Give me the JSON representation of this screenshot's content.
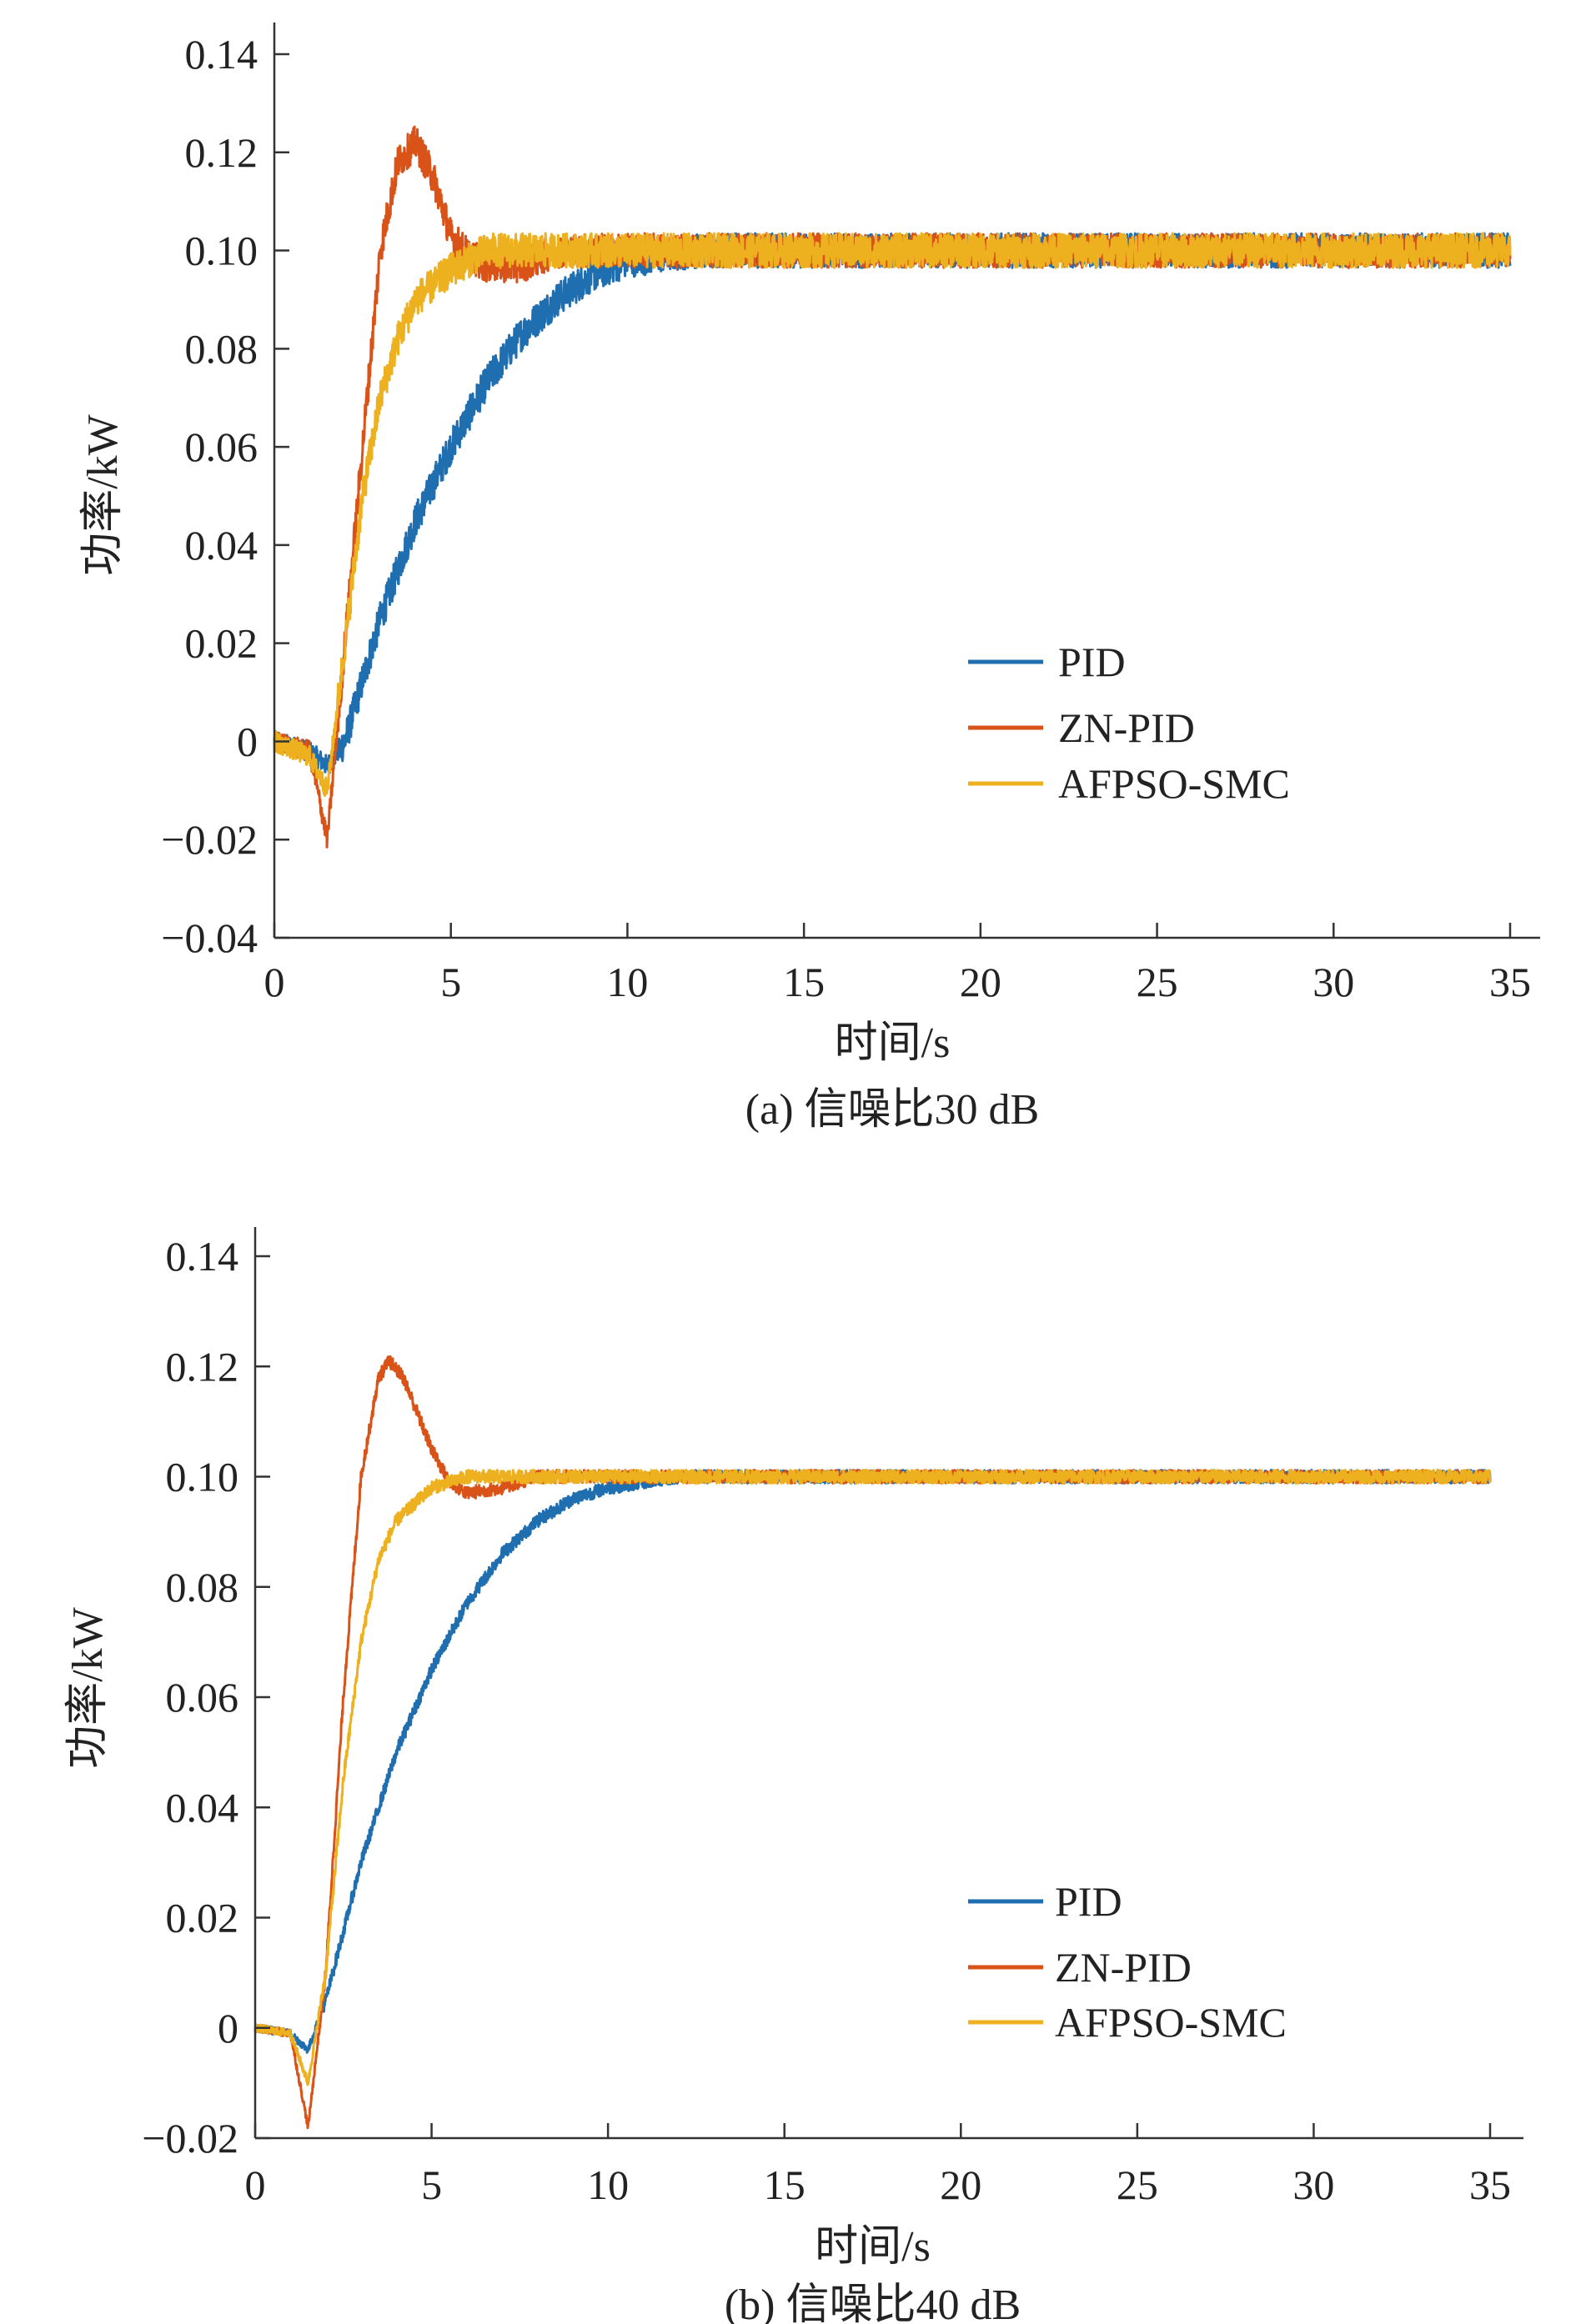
{
  "chart_data": [
    {
      "type": "line",
      "caption": "(a) 信噪比30 dB",
      "xlabel": "时间/s",
      "ylabel": "功率/kW",
      "xlim": [
        0,
        35
      ],
      "ylim": [
        -0.04,
        0.145
      ],
      "xticks": [
        0,
        5,
        10,
        15,
        20,
        25,
        30,
        35
      ],
      "xtick_labels": [
        "0",
        "5",
        "10",
        "15",
        "20",
        "25",
        "30",
        "35"
      ],
      "yticks": [
        -0.04,
        -0.02,
        0,
        0.02,
        0.04,
        0.06,
        0.08,
        0.1,
        0.12,
        0.14
      ],
      "ytick_labels": [
        "−0.04",
        "−0.02",
        "0",
        "0.02",
        "0.04",
        "0.06",
        "0.08",
        "0.10",
        "0.12",
        "0.14"
      ],
      "grid": false,
      "legend_position": "lower-right",
      "noise_amplitude": 0.0035,
      "series": [
        {
          "name": "PID",
          "color": "#1f6fb0",
          "x": [
            0,
            1,
            1.5,
            2,
            3,
            4,
            5,
            6,
            7,
            8,
            9,
            10,
            12,
            35
          ],
          "y": [
            0,
            -0.002,
            -0.005,
            0,
            0.025,
            0.045,
            0.06,
            0.073,
            0.083,
            0.09,
            0.095,
            0.098,
            0.1,
            0.1
          ]
        },
        {
          "name": "ZN-PID",
          "color": "#d95319",
          "x": [
            0,
            1,
            1.5,
            2,
            2.5,
            3,
            3.5,
            4,
            4.5,
            5,
            5.5,
            6,
            7,
            8,
            10,
            35
          ],
          "y": [
            0,
            -0.002,
            -0.02,
            0.02,
            0.06,
            0.1,
            0.118,
            0.122,
            0.115,
            0.103,
            0.099,
            0.097,
            0.097,
            0.1,
            0.1,
            0.1
          ]
        },
        {
          "name": "AFPSO-SMC",
          "color": "#edb120",
          "x": [
            0,
            1,
            1.5,
            2,
            2.5,
            3,
            3.5,
            4,
            5,
            6,
            35
          ],
          "y": [
            0,
            -0.003,
            -0.01,
            0.02,
            0.05,
            0.07,
            0.082,
            0.09,
            0.096,
            0.1,
            0.1
          ]
        }
      ]
    },
    {
      "type": "line",
      "caption": "(b) 信噪比40 dB",
      "xlabel": "时间/s",
      "ylabel": "功率/kW",
      "xlim": [
        0,
        35
      ],
      "ylim": [
        -0.02,
        0.145
      ],
      "xticks": [
        0,
        5,
        10,
        15,
        20,
        25,
        30,
        35
      ],
      "xtick_labels": [
        "0",
        "5",
        "10",
        "15",
        "20",
        "25",
        "30",
        "35"
      ],
      "yticks": [
        -0.02,
        0,
        0.02,
        0.04,
        0.06,
        0.08,
        0.1,
        0.12,
        0.14
      ],
      "ytick_labels": [
        "−0.02",
        "0",
        "0.02",
        "0.04",
        "0.06",
        "0.08",
        "0.10",
        "0.12",
        "0.14"
      ],
      "grid": false,
      "legend_position": "lower-right",
      "noise_amplitude": 0.0012,
      "series": [
        {
          "name": "PID",
          "color": "#1f6fb0",
          "x": [
            0,
            1,
            1.5,
            2,
            3,
            4,
            5,
            6,
            7,
            8,
            9,
            10,
            12,
            35
          ],
          "y": [
            0,
            -0.001,
            -0.004,
            0.005,
            0.03,
            0.05,
            0.065,
            0.077,
            0.086,
            0.092,
            0.096,
            0.098,
            0.1,
            0.1
          ]
        },
        {
          "name": "ZN-PID",
          "color": "#d95319",
          "x": [
            0,
            1,
            1.5,
            2,
            2.5,
            3,
            3.5,
            3.8,
            4.2,
            5,
            5.5,
            6,
            7,
            8,
            35
          ],
          "y": [
            0,
            -0.001,
            -0.018,
            0.01,
            0.06,
            0.1,
            0.118,
            0.121,
            0.118,
            0.105,
            0.099,
            0.097,
            0.098,
            0.1,
            0.1
          ]
        },
        {
          "name": "AFPSO-SMC",
          "color": "#edb120",
          "x": [
            0,
            1,
            1.5,
            2,
            2.5,
            3,
            3.5,
            4,
            5,
            6,
            35
          ],
          "y": [
            0,
            -0.001,
            -0.01,
            0.01,
            0.045,
            0.07,
            0.085,
            0.092,
            0.098,
            0.1,
            0.1
          ]
        }
      ]
    }
  ]
}
